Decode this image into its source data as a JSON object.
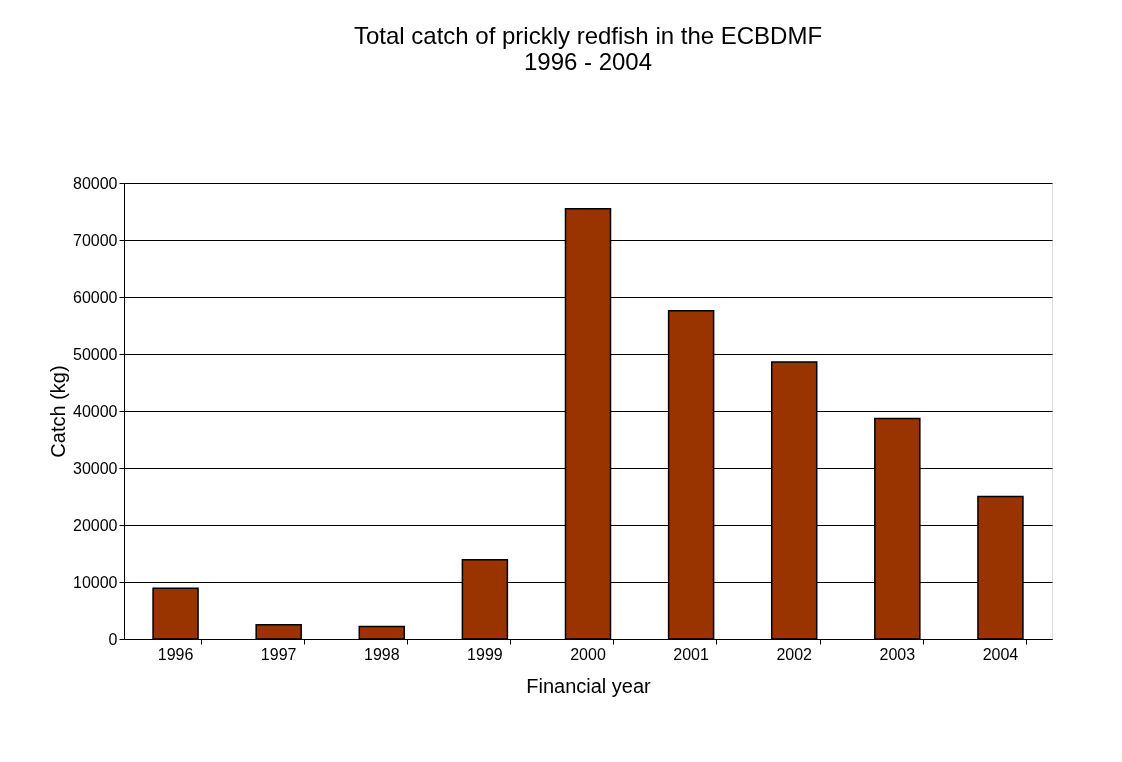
{
  "chart_data": {
    "type": "bar",
    "title": [
      "Total catch of prickly redfish in the ECBDMF",
      "1996 - 2004"
    ],
    "xlabel": "Financial year",
    "ylabel": "Catch (kg)",
    "categories": [
      "1996",
      "1997",
      "1998",
      "1999",
      "2000",
      "2001",
      "2002",
      "2003",
      "2004"
    ],
    "values": [
      8900,
      2500,
      2200,
      13900,
      75500,
      57600,
      48600,
      38700,
      25000
    ],
    "color": "#993300",
    "ylim": [
      0,
      80000
    ],
    "yticks": [
      0,
      10000,
      20000,
      30000,
      40000,
      50000,
      60000,
      70000,
      80000
    ],
    "grid": "y"
  }
}
